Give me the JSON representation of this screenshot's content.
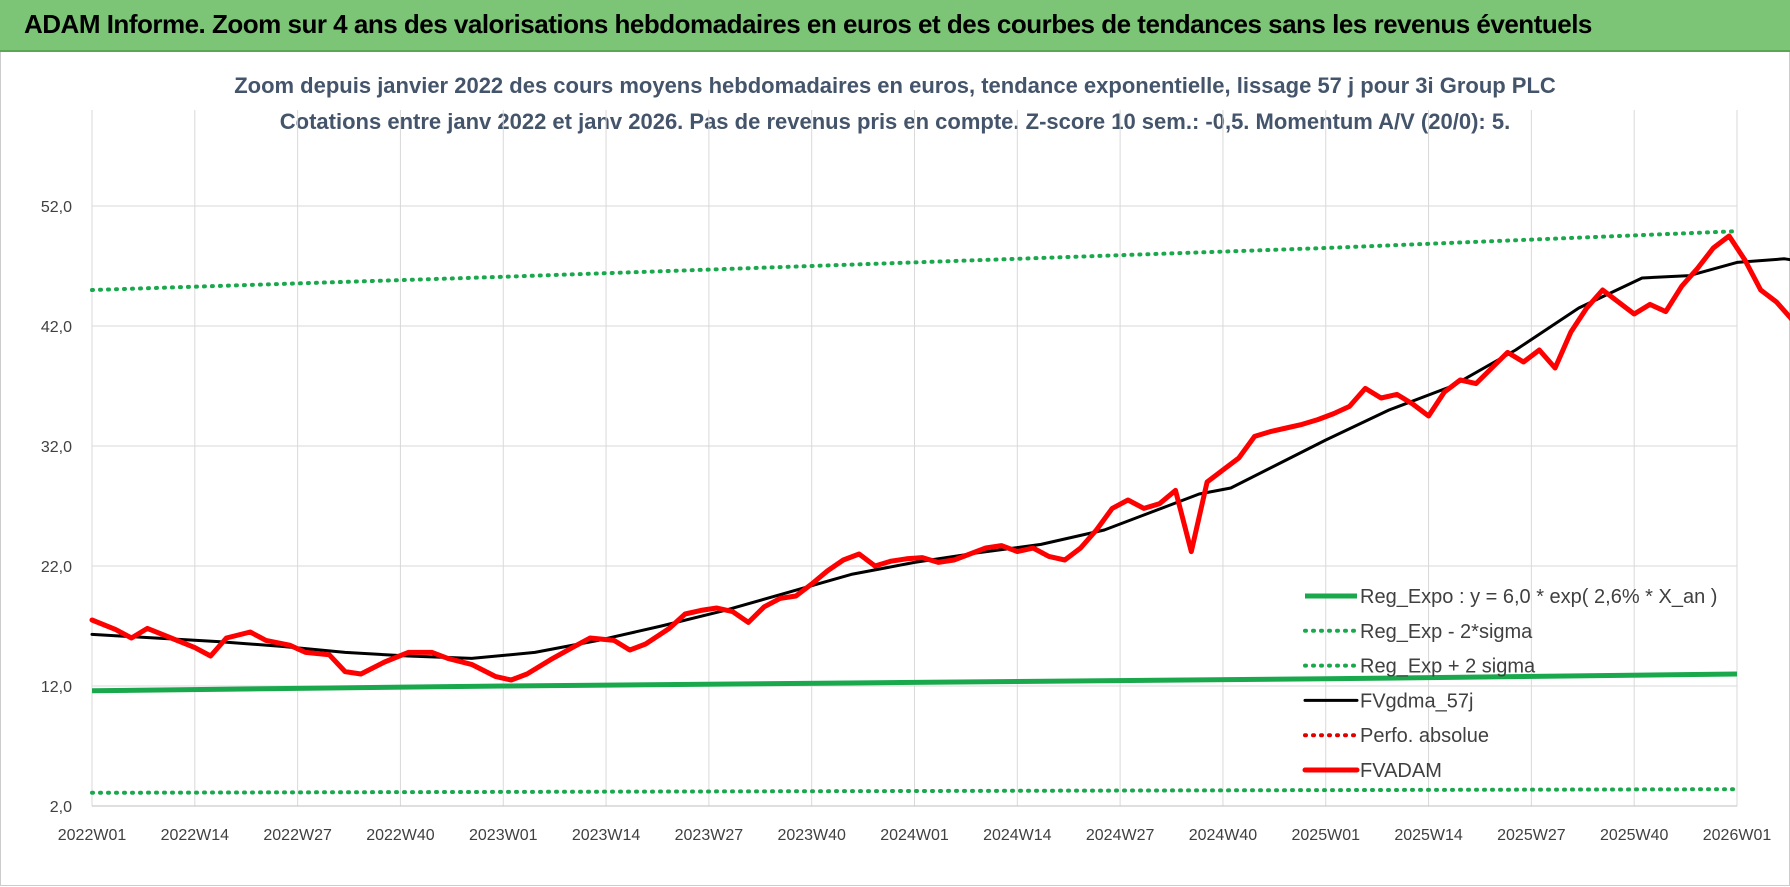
{
  "banner": {
    "title": "ADAM Informe. Zoom sur 4 ans des valorisations hebdomadaires en euros et des courbes de tendances sans les revenus éventuels"
  },
  "chart_data": {
    "type": "line",
    "title": "Zoom depuis janvier 2022 des cours moyens hebdomadaires en euros, tendance exponentielle, lissage 57 j pour 3i Group PLC",
    "subtitle": "Cotations entre janv 2022 et janv 2026. Pas de revenus pris en compte. Z-score 10 sem.: -0,5. Momentum A/V (20/0): 5.",
    "xlabel": "",
    "ylabel": "",
    "ylim": [
      2,
      60
    ],
    "yticks": [
      "2,0",
      "12,0",
      "22,0",
      "32,0",
      "42,0",
      "52,0"
    ],
    "ytick_values": [
      2,
      12,
      22,
      32,
      42,
      52
    ],
    "xticks": [
      "2022W01",
      "2022W14",
      "2022W27",
      "2022W40",
      "2023W01",
      "2023W14",
      "2023W27",
      "2023W40",
      "2024W01",
      "2024W14",
      "2024W27",
      "2024W40",
      "2025W01",
      "2025W14",
      "2025W27",
      "2025W40",
      "2026W01"
    ],
    "x_week_count": 209,
    "grid": true,
    "legend_position": "bottom-right",
    "series": [
      {
        "name": "Reg_Expo : y = 6,0 * exp( 2,6% *  X_an )",
        "color": "#1aa84d",
        "style": "solid",
        "points": [
          [
            0,
            11.6
          ],
          [
            52,
            12.0
          ],
          [
            104,
            12.3
          ],
          [
            156,
            12.6
          ],
          [
            208,
            13.0
          ]
        ]
      },
      {
        "name": "Reg_Exp - 2*sigma",
        "color": "#1aa84d",
        "style": "dotted",
        "points": [
          [
            0,
            3.1
          ],
          [
            208,
            3.4
          ]
        ]
      },
      {
        "name": "Reg_Exp + 2 sigma",
        "color": "#1aa84d",
        "style": "dotted",
        "points": [
          [
            0,
            45.0
          ],
          [
            52,
            46.1
          ],
          [
            104,
            47.3
          ],
          [
            156,
            48.5
          ],
          [
            208,
            49.9
          ]
        ]
      },
      {
        "name": "FVgdma_57j",
        "color": "#000000",
        "style": "solid",
        "points": [
          [
            0,
            16.3
          ],
          [
            8,
            16.0
          ],
          [
            16,
            15.7
          ],
          [
            24,
            15.3
          ],
          [
            32,
            14.8
          ],
          [
            40,
            14.5
          ],
          [
            48,
            14.3
          ],
          [
            56,
            14.8
          ],
          [
            64,
            15.8
          ],
          [
            72,
            17.0
          ],
          [
            80,
            18.3
          ],
          [
            88,
            19.8
          ],
          [
            96,
            21.3
          ],
          [
            104,
            22.3
          ],
          [
            112,
            23.1
          ],
          [
            120,
            23.8
          ],
          [
            128,
            25.0
          ],
          [
            136,
            27.0
          ],
          [
            140,
            28.0
          ],
          [
            144,
            28.5
          ],
          [
            150,
            30.5
          ],
          [
            156,
            32.5
          ],
          [
            164,
            35.0
          ],
          [
            172,
            37.0
          ],
          [
            180,
            40.0
          ],
          [
            188,
            43.5
          ],
          [
            196,
            46.0
          ],
          [
            202,
            46.2
          ],
          [
            208,
            47.3
          ],
          [
            214,
            47.6
          ],
          [
            220,
            47.0
          ],
          [
            226,
            46.0
          ],
          [
            232,
            45.2
          ],
          [
            238,
            43.0
          ],
          [
            242,
            40.5
          ],
          [
            246,
            39.5
          ]
        ]
      },
      {
        "name": "Perfo. absolue",
        "color": "#e00000",
        "style": "dotted",
        "points": []
      },
      {
        "name": "FVADAM",
        "color": "#ff0000",
        "style": "solid",
        "points": [
          [
            0,
            17.5
          ],
          [
            3,
            16.7
          ],
          [
            5,
            16.0
          ],
          [
            7,
            16.8
          ],
          [
            10,
            16.0
          ],
          [
            13,
            15.2
          ],
          [
            15,
            14.5
          ],
          [
            17,
            16.0
          ],
          [
            20,
            16.5
          ],
          [
            22,
            15.8
          ],
          [
            25,
            15.4
          ],
          [
            27,
            14.8
          ],
          [
            30,
            14.6
          ],
          [
            32,
            13.2
          ],
          [
            34,
            13.0
          ],
          [
            37,
            14.0
          ],
          [
            40,
            14.8
          ],
          [
            43,
            14.8
          ],
          [
            45,
            14.3
          ],
          [
            48,
            13.8
          ],
          [
            51,
            12.8
          ],
          [
            53,
            12.5
          ],
          [
            55,
            13.0
          ],
          [
            58,
            14.2
          ],
          [
            61,
            15.3
          ],
          [
            63,
            16.0
          ],
          [
            66,
            15.8
          ],
          [
            68,
            15.0
          ],
          [
            70,
            15.5
          ],
          [
            73,
            16.8
          ],
          [
            75,
            18.0
          ],
          [
            77,
            18.3
          ],
          [
            79,
            18.5
          ],
          [
            81,
            18.2
          ],
          [
            83,
            17.3
          ],
          [
            85,
            18.6
          ],
          [
            87,
            19.3
          ],
          [
            89,
            19.5
          ],
          [
            91,
            20.5
          ],
          [
            93,
            21.6
          ],
          [
            95,
            22.5
          ],
          [
            97,
            23.0
          ],
          [
            99,
            22.0
          ],
          [
            101,
            22.4
          ],
          [
            103,
            22.6
          ],
          [
            105,
            22.7
          ],
          [
            107,
            22.3
          ],
          [
            109,
            22.5
          ],
          [
            111,
            23.0
          ],
          [
            113,
            23.5
          ],
          [
            115,
            23.7
          ],
          [
            117,
            23.2
          ],
          [
            119,
            23.5
          ],
          [
            121,
            22.8
          ],
          [
            123,
            22.5
          ],
          [
            125,
            23.5
          ],
          [
            127,
            25.0
          ],
          [
            129,
            26.8
          ],
          [
            131,
            27.5
          ],
          [
            133,
            26.8
          ],
          [
            135,
            27.2
          ],
          [
            137,
            28.3
          ],
          [
            139,
            23.2
          ],
          [
            141,
            29.0
          ],
          [
            143,
            30.0
          ],
          [
            145,
            31.0
          ],
          [
            147,
            32.8
          ],
          [
            149,
            33.2
          ],
          [
            151,
            33.5
          ],
          [
            153,
            33.8
          ],
          [
            155,
            34.2
          ],
          [
            157,
            34.7
          ],
          [
            159,
            35.3
          ],
          [
            161,
            36.8
          ],
          [
            163,
            36.0
          ],
          [
            165,
            36.3
          ],
          [
            167,
            35.5
          ],
          [
            169,
            34.5
          ],
          [
            171,
            36.5
          ],
          [
            173,
            37.5
          ],
          [
            175,
            37.2
          ],
          [
            177,
            38.5
          ],
          [
            179,
            39.8
          ],
          [
            181,
            39.0
          ],
          [
            183,
            40.0
          ],
          [
            185,
            38.5
          ],
          [
            187,
            41.5
          ],
          [
            189,
            43.5
          ],
          [
            191,
            45.0
          ],
          [
            193,
            44.0
          ],
          [
            195,
            43.0
          ],
          [
            197,
            43.8
          ],
          [
            199,
            43.2
          ],
          [
            201,
            45.3
          ],
          [
            203,
            46.8
          ],
          [
            205,
            48.5
          ],
          [
            207,
            49.5
          ],
          [
            209,
            47.5
          ],
          [
            211,
            45.0
          ],
          [
            213,
            44.0
          ],
          [
            215,
            42.5
          ],
          [
            217,
            42.8
          ],
          [
            219,
            47.3
          ],
          [
            221,
            49.5
          ],
          [
            223,
            48.2
          ],
          [
            225,
            47.8
          ],
          [
            227,
            48.8
          ],
          [
            229,
            49.3
          ],
          [
            231,
            48.0
          ],
          [
            233,
            47.3
          ],
          [
            235,
            47.8
          ],
          [
            237,
            48.8
          ],
          [
            239,
            47.0
          ],
          [
            241,
            47.5
          ],
          [
            243,
            46.5
          ],
          [
            245,
            45.3
          ],
          [
            247,
            45.0
          ],
          [
            249,
            45.5
          ],
          [
            251,
            48.5
          ],
          [
            253,
            49.2
          ],
          [
            255,
            50.0
          ],
          [
            257,
            48.5
          ],
          [
            259,
            44.0
          ],
          [
            261,
            37.2
          ],
          [
            263,
            36.0
          ],
          [
            265,
            35.2
          ],
          [
            267,
            36.2
          ],
          [
            269,
            36.7
          ],
          [
            271,
            37.0
          ],
          [
            273,
            37.1
          ]
        ]
      }
    ]
  }
}
